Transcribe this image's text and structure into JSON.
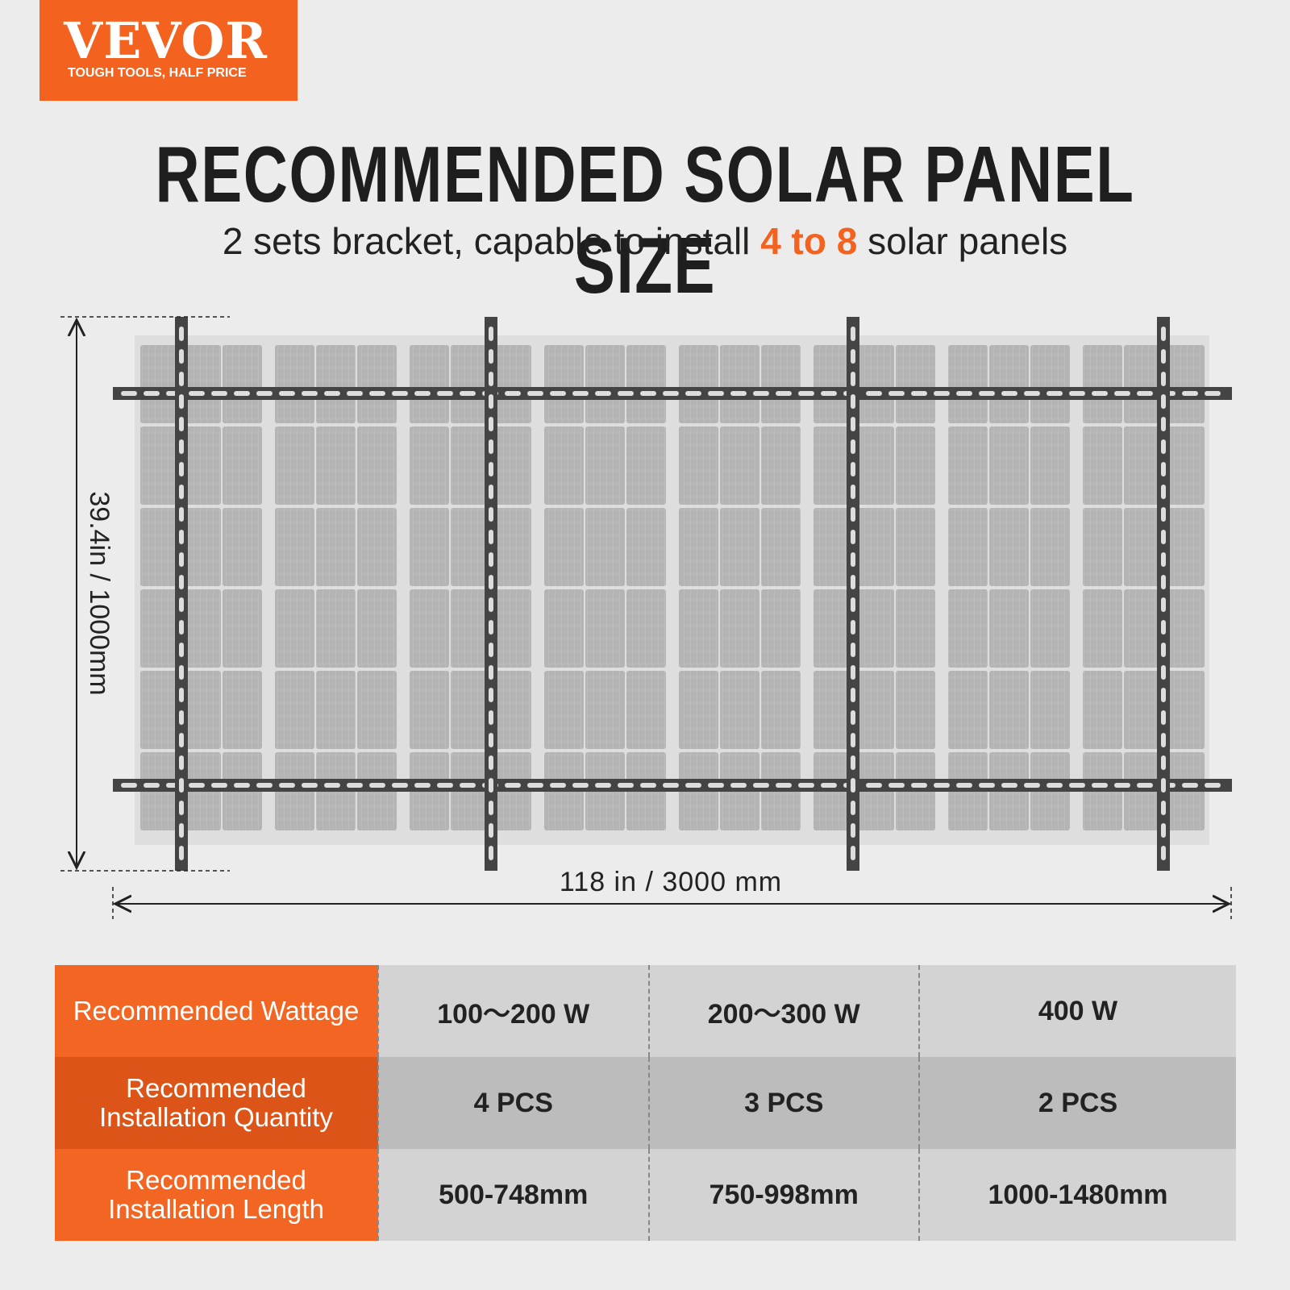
{
  "logo": {
    "brand": "VEVOR",
    "slogan": "TOUGH TOOLS, HALF PRICE"
  },
  "header": {
    "title": "RECOMMENDED SOLAR PANEL SIZE",
    "subtitle": {
      "before": "2 sets bracket, capable to install",
      "highlight": "4 to 8",
      "after": "solar panels"
    }
  },
  "diagram": {
    "height_label": "39.4in / 1000mm",
    "width_label": "118 in / 3000 mm"
  },
  "table": {
    "rows": [
      [
        "Recommended Wattage",
        "100～200 W",
        "200～300 W",
        "400 W"
      ],
      [
        "Recommended Installation Quantity",
        "4 PCS",
        "3 PCS",
        "2 PCS"
      ],
      [
        "Recommended Installation Length",
        "500-748mm",
        "750-998mm",
        "1000-1480mm"
      ]
    ]
  }
}
